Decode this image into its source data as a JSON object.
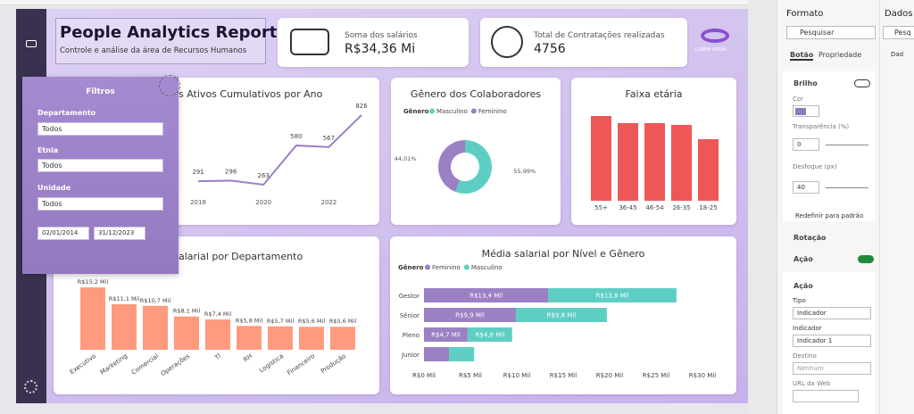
{
  "report": {
    "title": "People Analytics Report",
    "subtitle": "Controle e análise da área de Recursos Humanos",
    "logo": "LOREM IPSUM"
  },
  "kpis": [
    {
      "label": "Soma dos salários",
      "value": "R$34,36 Mi"
    },
    {
      "label": "Total de Contratações realizadas",
      "value": "4756"
    }
  ],
  "filters": {
    "title": "Filtros",
    "fields": [
      {
        "label": "Departamento",
        "value": "Todos"
      },
      {
        "label": "Etnia",
        "value": "Todos"
      },
      {
        "label": "Unidade",
        "value": "Todos"
      }
    ],
    "date_start": "02/01/2014",
    "date_end": "31/12/2023"
  },
  "charts": {
    "line": {
      "type": "line",
      "title": "s Ativos Cumulativos por Ano",
      "categories": [
        "2018",
        null,
        "2020",
        null,
        "2022",
        null
      ],
      "values": [
        291,
        296,
        263,
        580,
        567,
        826
      ],
      "color": "#9b7fc7"
    },
    "pie": {
      "type": "donut",
      "title": "Gênero dos Colaboradores",
      "legend_title": "Gênero",
      "categories": [
        "Masculino",
        "Feminino"
      ],
      "values": [
        55.99,
        44.01
      ],
      "value_labels": [
        "55,99%",
        "44,01%"
      ],
      "colors": [
        "#5ecec4",
        "#9b80c4"
      ]
    },
    "age": {
      "type": "bar",
      "title": "Faixa etária",
      "categories": [
        "55+",
        "36-45",
        "46-54",
        "26-35",
        "18-25"
      ],
      "values": [
        95,
        87,
        87,
        85,
        69
      ],
      "color": "#ee5757"
    },
    "dept": {
      "type": "bar",
      "title": "alarial por Departamento",
      "categories": [
        "Executivo",
        "Marketing",
        "Comercial",
        "Operações",
        "TI",
        "RH",
        "Logística",
        "Financeiro",
        "Produção"
      ],
      "values": [
        15.2,
        11.1,
        10.7,
        8.1,
        7.4,
        5.8,
        5.7,
        5.6,
        5.6
      ],
      "value_labels": [
        "R$15,2 Mil",
        "R$11,1 Mil",
        "R$10,7 Mil",
        "R$8,1 Mil",
        "R$7,4 Mil",
        "R$5,8 Mil",
        "R$5,7 Mil",
        "R$5,6 Mil",
        "R$5,6 Mil"
      ],
      "color": "#ff9a7e"
    },
    "hbar": {
      "type": "stacked_hbar",
      "title": "Média salarial por Nível e Gênero",
      "legend_title": "Gênero",
      "categories": [
        "Gestor",
        "Sênior",
        "Pleno",
        "Junior"
      ],
      "series": [
        {
          "name": "Feminino",
          "color": "#9b80c4",
          "values": [
            13.4,
            9.9,
            4.7,
            2.7
          ],
          "value_labels": [
            "R$13,4 Mil",
            "R$9,9 Mil",
            "R$4,7 Mil",
            null
          ]
        },
        {
          "name": "Masculino",
          "color": "#5ecec4",
          "values": [
            13.8,
            9.8,
            4.8,
            2.7
          ],
          "value_labels": [
            "R$13,8 Mil",
            "R$9,8 Mil",
            "R$4,8 Mil",
            null
          ]
        }
      ],
      "xlim": [
        0,
        30
      ],
      "xticks": [
        {
          "value": 0,
          "label": "R$0 Mil"
        },
        {
          "value": 5,
          "label": "R$5 Mil"
        },
        {
          "value": 10,
          "label": "R$10 Mil"
        },
        {
          "value": 15,
          "label": "R$15 Mil"
        },
        {
          "value": 20,
          "label": "R$20 Mil"
        },
        {
          "value": 25,
          "label": "R$25 Mil"
        },
        {
          "value": 30,
          "label": "R$30 Mil"
        }
      ]
    }
  },
  "format_pane": {
    "title": "Formato",
    "search": "Pesquisar",
    "tabs": [
      "Botão",
      "Propriedade"
    ],
    "brilho": "Brilho",
    "cor": "Cor",
    "transparencia": "Transparência (%)",
    "transparencia_value": "0",
    "desfoque": "Desfoque (px)",
    "desfoque_value": "40",
    "reset": "Redefinir para padrão",
    "rotacao": "Rotação",
    "acao": "Ação",
    "acao_sub": "Ação",
    "tipo": "Tipo",
    "tipo_value": "Indicador",
    "indicador": "Indicador",
    "indicador_value": "Indicador 1",
    "destino": "Destino",
    "destino_value": "Nenhum",
    "url": "URL da Web"
  },
  "data_pane": {
    "title": "Dados",
    "search": "Pesq",
    "item": "Dad"
  }
}
